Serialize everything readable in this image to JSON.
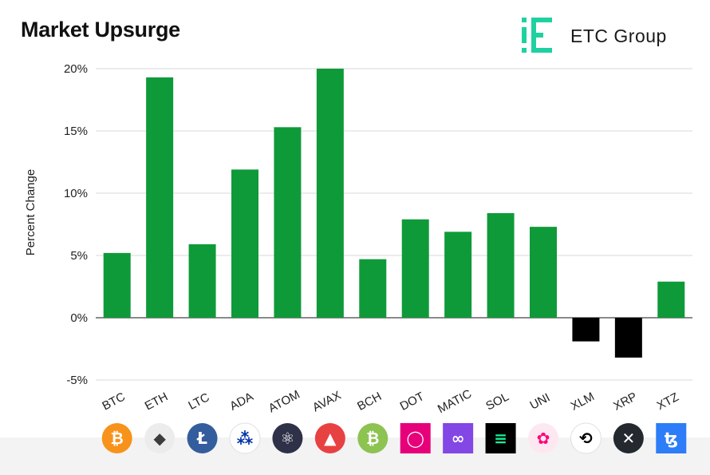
{
  "header": {
    "title": "Market Upsurge",
    "brand_name": "ETC Group",
    "brand_color": "#1fd1a0"
  },
  "chart_data": {
    "type": "bar",
    "title": "Market Upsurge",
    "xlabel": "",
    "ylabel": "Percent Change",
    "ylim": [
      -5,
      20
    ],
    "yticks": [
      -5,
      0,
      5,
      10,
      15,
      20
    ],
    "ytick_labels": [
      "-5%",
      "0%",
      "5%",
      "10%",
      "15%",
      "20%"
    ],
    "grid": "horizontal",
    "categories": [
      "BTC",
      "ETH",
      "LTC",
      "ADA",
      "ATOM",
      "AVAX",
      "BCH",
      "DOT",
      "MATIC",
      "SOL",
      "UNI",
      "XLM",
      "XRP",
      "XTZ"
    ],
    "values": [
      5.2,
      19.3,
      5.9,
      11.9,
      15.3,
      20.0,
      4.7,
      7.9,
      6.9,
      8.4,
      7.3,
      -1.9,
      -3.2,
      2.9
    ],
    "positive_color": "#0f9a39",
    "negative_color": "#000000",
    "icons": [
      {
        "name": "bitcoin-icon",
        "bg": "#f7931a",
        "fg": "#ffffff",
        "glyph": "₿",
        "shape": "circle"
      },
      {
        "name": "ethereum-icon",
        "bg": "#ececec",
        "fg": "#3c3c3d",
        "glyph": "◆",
        "shape": "circle"
      },
      {
        "name": "litecoin-icon",
        "bg": "#345d9d",
        "fg": "#ffffff",
        "glyph": "Ł",
        "shape": "circle"
      },
      {
        "name": "cardano-icon",
        "bg": "#ffffff",
        "fg": "#0033ad",
        "glyph": "⁂",
        "shape": "circle"
      },
      {
        "name": "cosmos-icon",
        "bg": "#2e3148",
        "fg": "#ffffff",
        "glyph": "⚛",
        "shape": "circle"
      },
      {
        "name": "avalanche-icon",
        "bg": "#e84142",
        "fg": "#ffffff",
        "glyph": "▲",
        "shape": "circle"
      },
      {
        "name": "bitcoin-cash-icon",
        "bg": "#8dc351",
        "fg": "#ffffff",
        "glyph": "₿",
        "shape": "circle"
      },
      {
        "name": "polkadot-icon",
        "bg": "#e6007a",
        "fg": "#ffffff",
        "glyph": "◯",
        "shape": "square"
      },
      {
        "name": "polygon-icon",
        "bg": "#8247e5",
        "fg": "#ffffff",
        "glyph": "∞",
        "shape": "square"
      },
      {
        "name": "solana-icon",
        "bg": "#000000",
        "fg": "#14f195",
        "glyph": "≡",
        "shape": "square"
      },
      {
        "name": "uniswap-icon",
        "bg": "#fde8f2",
        "fg": "#ff007a",
        "glyph": "✿",
        "shape": "circle"
      },
      {
        "name": "stellar-icon",
        "bg": "#ffffff",
        "fg": "#000000",
        "glyph": "⟲",
        "shape": "circle"
      },
      {
        "name": "xrp-icon",
        "bg": "#23292f",
        "fg": "#ffffff",
        "glyph": "✕",
        "shape": "circle"
      },
      {
        "name": "tezos-icon",
        "bg": "#2c7df7",
        "fg": "#ffffff",
        "glyph": "ꜩ",
        "shape": "square"
      }
    ]
  }
}
